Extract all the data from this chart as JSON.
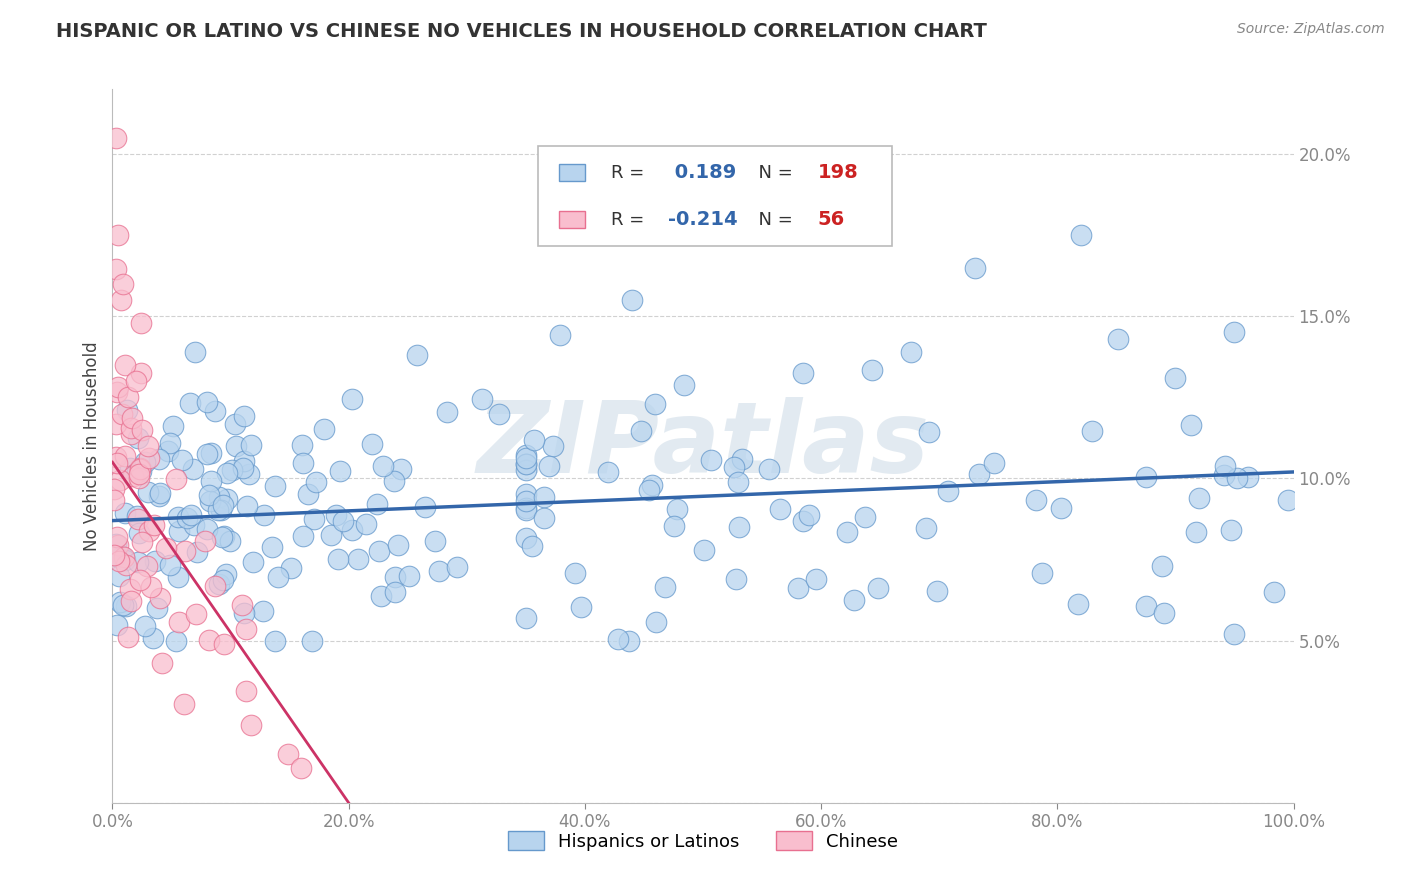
{
  "title": "HISPANIC OR LATINO VS CHINESE NO VEHICLES IN HOUSEHOLD CORRELATION CHART",
  "source": "Source: ZipAtlas.com",
  "ylabel": "No Vehicles in Household",
  "legend_labels": [
    "Hispanics or Latinos",
    "Chinese"
  ],
  "blue_R": 0.189,
  "blue_N": 198,
  "pink_R": -0.214,
  "pink_N": 56,
  "blue_color": "#b8d4ee",
  "pink_color": "#f9bece",
  "blue_edge_color": "#6699cc",
  "pink_edge_color": "#e87090",
  "blue_line_color": "#3366aa",
  "pink_line_color": "#cc3366",
  "watermark_color": "#d0dde8",
  "watermark_text": "ZIPatlas",
  "xlim": [
    0,
    100
  ],
  "ylim": [
    0,
    22
  ],
  "ytick_values": [
    0,
    5,
    10,
    15,
    20
  ],
  "xtick_values": [
    0,
    20,
    40,
    60,
    80,
    100
  ],
  "blue_trend_x0": 0,
  "blue_trend_y0": 8.7,
  "blue_trend_x1": 100,
  "blue_trend_y1": 10.2,
  "pink_trend_x0": 0,
  "pink_trend_y0": 10.5,
  "pink_trend_x1": 20,
  "pink_trend_y1": 0.0
}
